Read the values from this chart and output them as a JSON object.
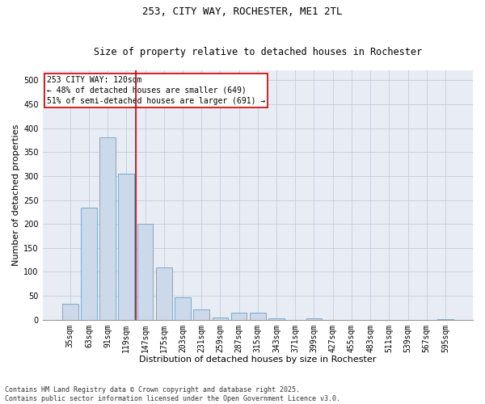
{
  "title1": "253, CITY WAY, ROCHESTER, ME1 2TL",
  "title2": "Size of property relative to detached houses in Rochester",
  "xlabel": "Distribution of detached houses by size in Rochester",
  "ylabel": "Number of detached properties",
  "categories": [
    "35sqm",
    "63sqm",
    "91sqm",
    "119sqm",
    "147sqm",
    "175sqm",
    "203sqm",
    "231sqm",
    "259sqm",
    "287sqm",
    "315sqm",
    "343sqm",
    "371sqm",
    "399sqm",
    "427sqm",
    "455sqm",
    "483sqm",
    "511sqm",
    "539sqm",
    "567sqm",
    "595sqm"
  ],
  "values": [
    33,
    234,
    381,
    305,
    200,
    110,
    47,
    22,
    4,
    14,
    14,
    3,
    0,
    3,
    0,
    0,
    0,
    0,
    0,
    0,
    2
  ],
  "bar_color": "#ccd9ea",
  "bar_edge_color": "#7aaac8",
  "vline_color": "#cc0000",
  "vline_x_index": 3.5,
  "annotation_box_text": "253 CITY WAY: 120sqm\n← 48% of detached houses are smaller (649)\n51% of semi-detached houses are larger (691) →",
  "box_edge_color": "#cc0000",
  "ylim": [
    0,
    520
  ],
  "yticks": [
    0,
    50,
    100,
    150,
    200,
    250,
    300,
    350,
    400,
    450,
    500
  ],
  "grid_color": "#c8ccd8",
  "bg_color": "#e8ecf4",
  "footnote": "Contains HM Land Registry data © Crown copyright and database right 2025.\nContains public sector information licensed under the Open Government Licence v3.0.",
  "title1_fontsize": 9,
  "title2_fontsize": 8.5,
  "xlabel_fontsize": 8,
  "ylabel_fontsize": 8,
  "tick_fontsize": 7,
  "ann_fontsize": 7,
  "footnote_fontsize": 6
}
